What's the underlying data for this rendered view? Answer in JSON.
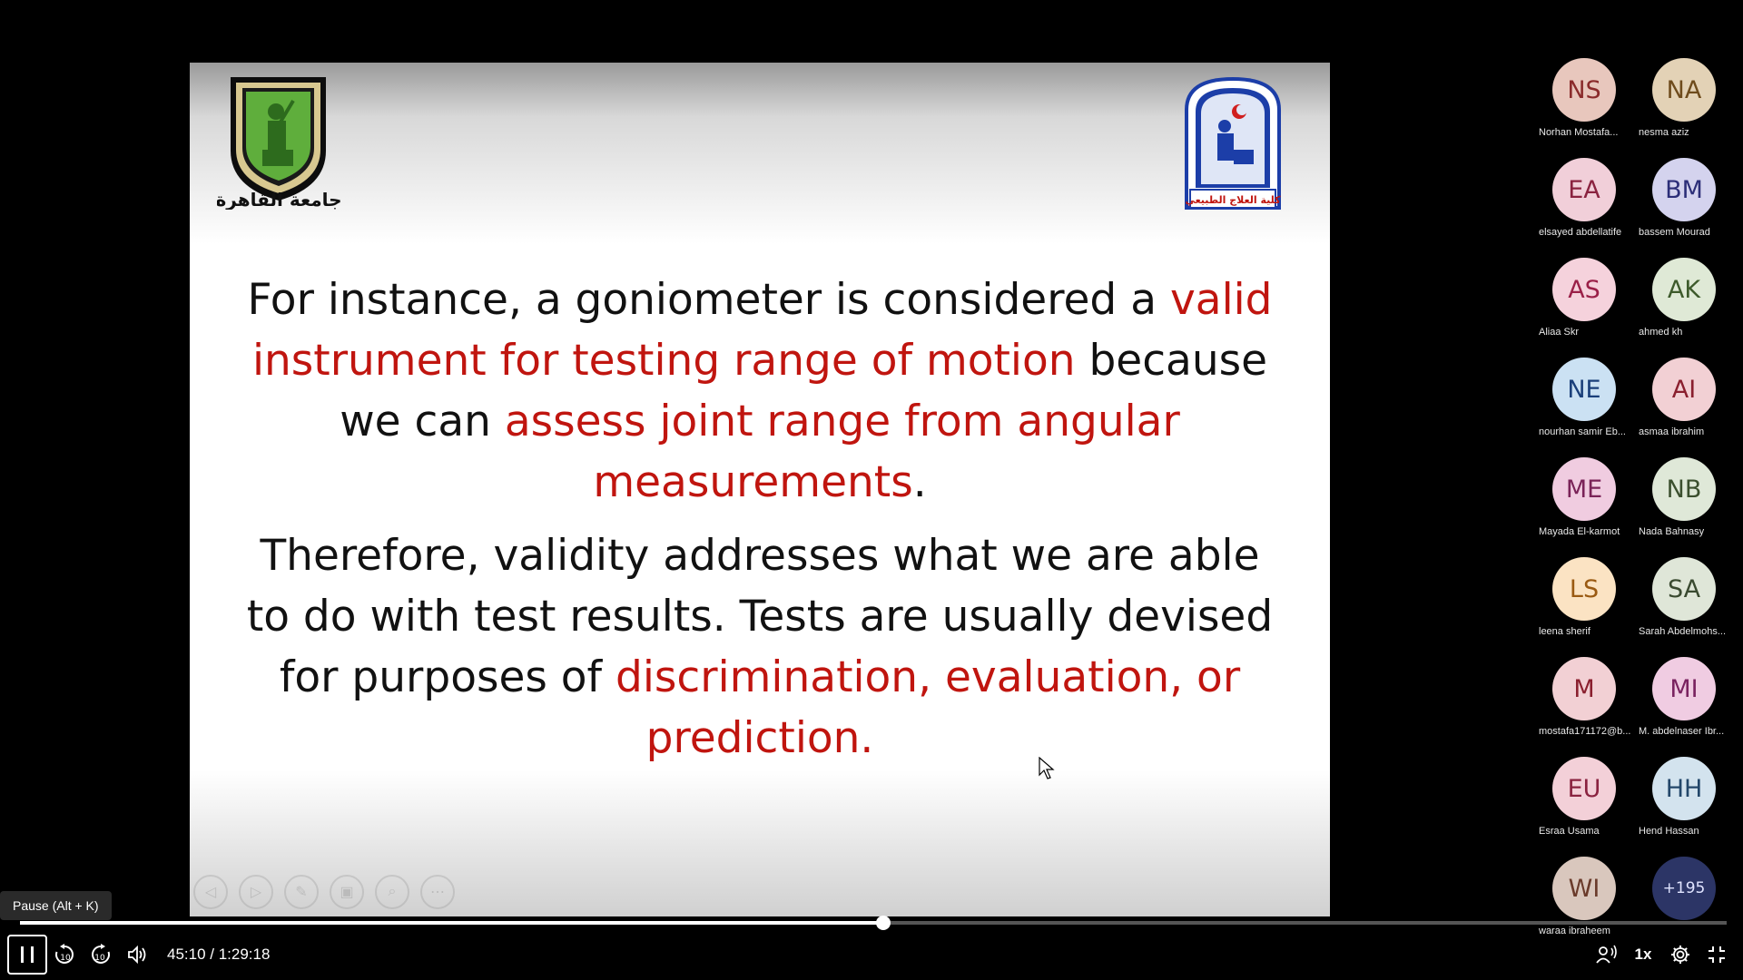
{
  "slide": {
    "left_logo_text": "جامعة القاهرة",
    "right_logo_text": "كلية العلاج الطبيعي",
    "paragraph1": [
      {
        "text": "For instance, a goniometer is considered a ",
        "highlight": false
      },
      {
        "text": "valid instrument for testing range of motion",
        "highlight": true
      },
      {
        "text": " because we can ",
        "highlight": false
      },
      {
        "text": "assess joint range from angular measurements",
        "highlight": true
      },
      {
        "text": ".",
        "highlight": false
      }
    ],
    "paragraph2": [
      {
        "text": "Therefore, validity addresses what we are able to do with test results. Tests are usually devised for purposes of ",
        "highlight": false
      },
      {
        "text": "discrimination, evaluation, or prediction.",
        "highlight": true
      }
    ],
    "highlight_color": "#c0150f"
  },
  "participants": [
    {
      "initials": "NS",
      "name": "Norhan Mostafa...",
      "bg": "#e8c7bd",
      "fg": "#8a2b2b"
    },
    {
      "initials": "NA",
      "name": "nesma aziz",
      "bg": "#e3d2b6",
      "fg": "#6e4b1c"
    },
    {
      "initials": "EA",
      "name": "elsayed abdellatife",
      "bg": "#f1cfd9",
      "fg": "#8a2340"
    },
    {
      "initials": "BM",
      "name": "bassem Mourad",
      "bg": "#d4d3ee",
      "fg": "#2c2e78"
    },
    {
      "initials": "AS",
      "name": "Aliaa Skr",
      "bg": "#f5d2dc",
      "fg": "#9a2048"
    },
    {
      "initials": "AK",
      "name": "ahmed kh",
      "bg": "#dfe9d6",
      "fg": "#3d5a2b"
    },
    {
      "initials": "NE",
      "name": "nourhan samir Eb...",
      "bg": "#cbe1f3",
      "fg": "#1a3f7a"
    },
    {
      "initials": "AI",
      "name": "asmaa ibrahim",
      "bg": "#f2d0d4",
      "fg": "#8a1f2e"
    },
    {
      "initials": "ME",
      "name": "Mayada El-karmot",
      "bg": "#f0cce0",
      "fg": "#7a2358"
    },
    {
      "initials": "NB",
      "name": "Nada Bahnasy",
      "bg": "#dfe8d8",
      "fg": "#3b4f2e"
    },
    {
      "initials": "LS",
      "name": "leena sherif",
      "bg": "#fbe3c3",
      "fg": "#9a5a12"
    },
    {
      "initials": "SA",
      "name": "Sarah Abdelmohs...",
      "bg": "#dfe6d8",
      "fg": "#3a4a30"
    },
    {
      "initials": "M",
      "name": "mostafa171172@b...",
      "bg": "#f2d0d4",
      "fg": "#8a1f2e"
    },
    {
      "initials": "MI",
      "name": "M. abdelnaser Ibr...",
      "bg": "#f0cce2",
      "fg": "#7a2360"
    },
    {
      "initials": "EU",
      "name": "Esraa Usama",
      "bg": "#f3d0d8",
      "fg": "#8a2340"
    },
    {
      "initials": "HH",
      "name": "Hend Hassan",
      "bg": "#d3e3ee",
      "fg": "#23476a"
    },
    {
      "initials": "WI",
      "name": "waraa ibraheem",
      "bg": "#d9c7bd",
      "fg": "#6a3b2b"
    },
    {
      "initials": "+195",
      "name": "",
      "bg": "#2c3566",
      "fg": "#e0e4ff"
    }
  ],
  "player": {
    "tooltip": "Pause (Alt + K)",
    "time_display": "45:10 / 1:29:18",
    "elapsed": "45:10",
    "duration": "1:29:18",
    "progress_fraction": 0.5058,
    "speed_label": "1x",
    "skip_back_label": "10",
    "skip_forward_label": "10"
  }
}
